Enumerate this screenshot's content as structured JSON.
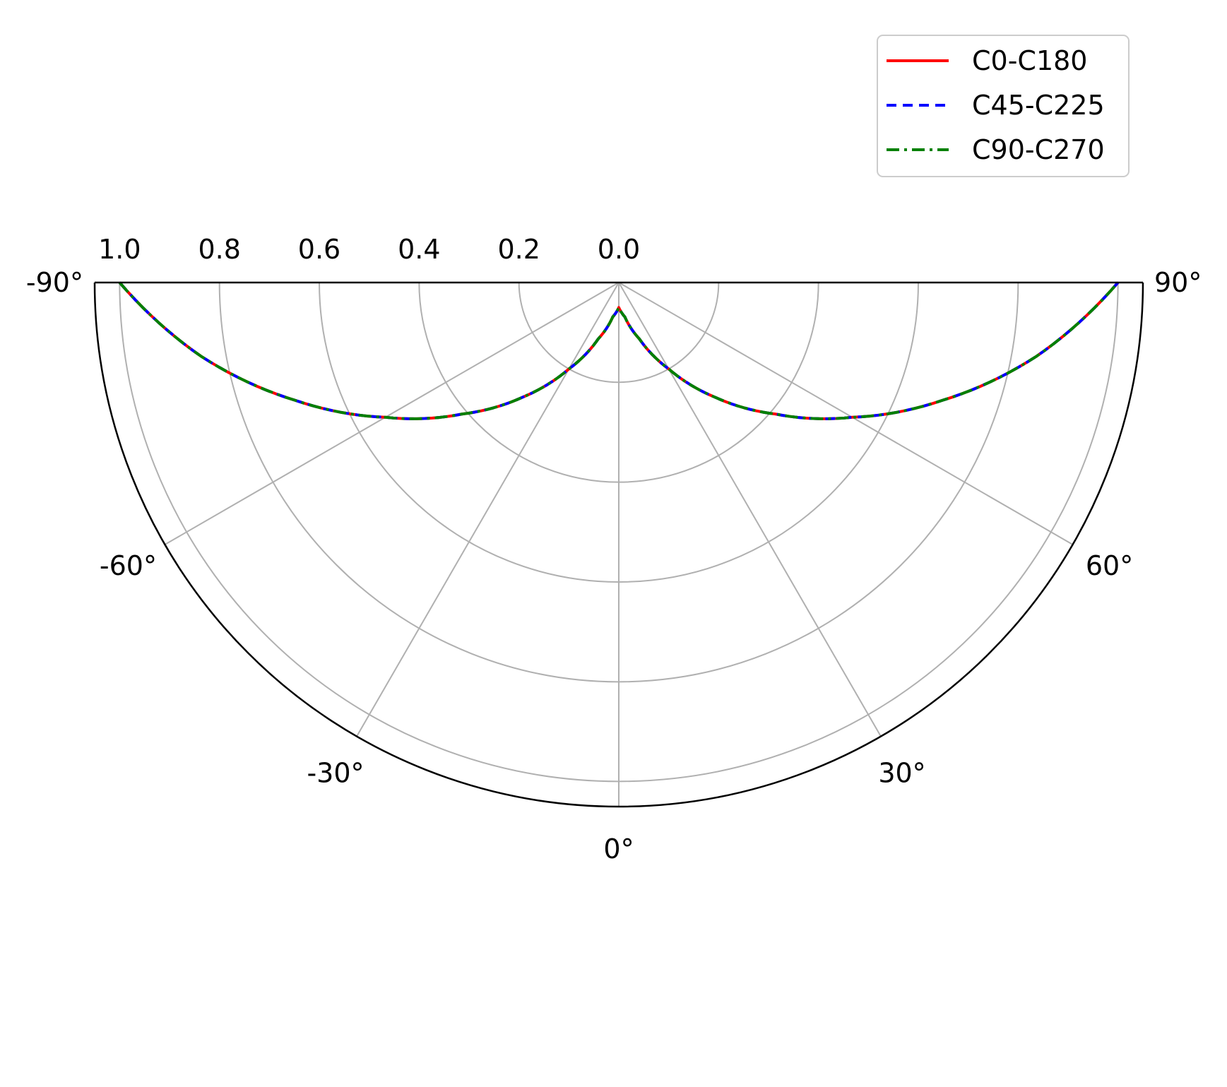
{
  "chart_data": {
    "type": "line",
    "subtype": "polar-half",
    "title": "",
    "theta_range_deg": [
      -90,
      90
    ],
    "theta_zero": "bottom",
    "r_range": [
      1.0,
      0.0
    ],
    "r_direction": "inward",
    "r_ticks": [
      "1.0",
      "0.8",
      "0.6",
      "0.4",
      "0.2",
      "0.0"
    ],
    "theta_ticks": [
      "-90°",
      "-60°",
      "-30°",
      "0°",
      "30°",
      "60°",
      "90°"
    ],
    "grid": true,
    "legend_position": "top-right",
    "theta_deg": [
      0,
      10,
      20,
      30,
      40,
      50,
      60,
      70,
      80,
      90
    ],
    "series": [
      {
        "name": "C0-C180",
        "color": "#ff0000",
        "dash": "solid",
        "values": [
          0.05,
          0.07,
          0.12,
          0.2,
          0.3,
          0.41,
          0.54,
          0.69,
          0.85,
          1.0
        ]
      },
      {
        "name": "C45-C225",
        "color": "#0000ff",
        "dash": "dashed",
        "values": [
          0.05,
          0.07,
          0.12,
          0.2,
          0.3,
          0.41,
          0.54,
          0.69,
          0.85,
          1.0
        ]
      },
      {
        "name": "C90-C270",
        "color": "#008000",
        "dash": "dashdot",
        "values": [
          0.05,
          0.07,
          0.12,
          0.2,
          0.3,
          0.41,
          0.54,
          0.69,
          0.85,
          1.0
        ]
      }
    ]
  }
}
